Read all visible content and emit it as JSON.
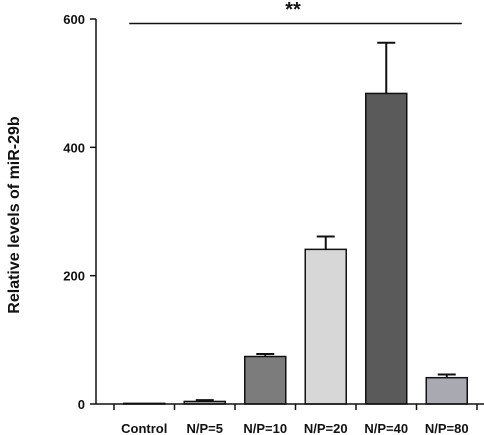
{
  "chart_data": {
    "type": "bar",
    "title": "",
    "xlabel": "",
    "ylabel": "Relative levels of miR-29b",
    "ylim": [
      0,
      600
    ],
    "yticks": [
      0,
      200,
      400,
      600
    ],
    "grid": false,
    "categories": [
      "Control",
      "N/P=5",
      "N/P=10",
      "N/P=20",
      "N/P=40",
      "N/P=80"
    ],
    "values": [
      1,
      4,
      74,
      241,
      484,
      41
    ],
    "errors": [
      0,
      2,
      4,
      20,
      79,
      5
    ],
    "colors": [
      "#ffffff",
      "#b0b0b0",
      "#7c7c7c",
      "#d7d7d7",
      "#5a5a5a",
      "#a9a9b1"
    ],
    "significance": {
      "label": "**",
      "from_category": "Control",
      "to_category": "N/P=80",
      "y": 593
    }
  }
}
